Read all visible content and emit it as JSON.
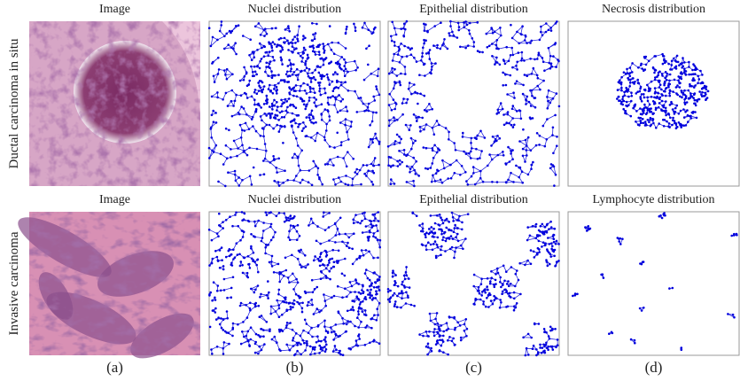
{
  "rows": [
    {
      "label": "Ductal carcinoma in situ",
      "panels": [
        "Image",
        "Nuclei distribution",
        "Epithelial distribution",
        "Necrosis distribution"
      ]
    },
    {
      "label": "Invasive carcinoma",
      "panels": [
        "Image",
        "Nuclei distribution",
        "Epithelial distribution",
        "Lymphocyte distribution"
      ]
    }
  ],
  "subfigure_labels": [
    "(a)",
    "(b)",
    "(c)",
    "(d)"
  ]
}
